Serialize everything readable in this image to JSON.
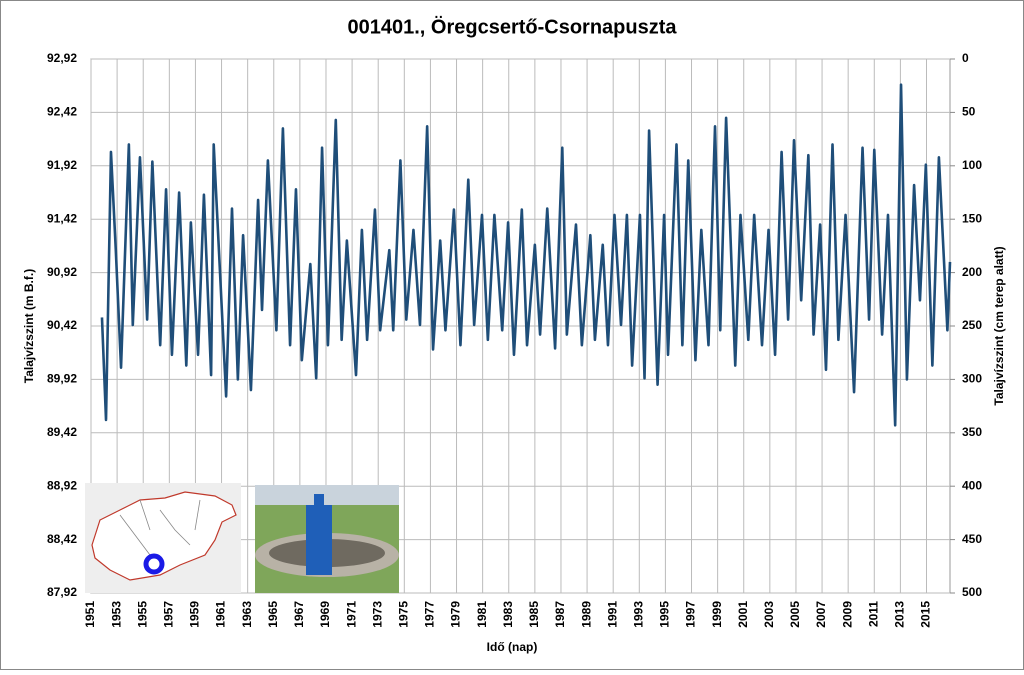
{
  "chart_data": {
    "type": "line",
    "title": "001401., Öregcsertő-Csornapuszta",
    "xlabel": "Idő (nap)",
    "ylabel": "Talajvízszint (m B.f.)",
    "y2label": "Talajvízszint (cm terep alatt)",
    "color": "#1f4e79",
    "grid": true,
    "x": [
      1951.84,
      1952.15,
      1952.53,
      1952.9,
      1953.3,
      1953.9,
      1954.2,
      1954.75,
      1955.3,
      1955.7,
      1956.3,
      1956.75,
      1957.2,
      1957.75,
      1958.3,
      1958.65,
      1959.2,
      1959.65,
      1960.2,
      1960.4,
      1961.35,
      1961.8,
      1962.25,
      1962.65,
      1963.25,
      1963.8,
      1964.1,
      1964.55,
      1965.2,
      1965.7,
      1966.25,
      1966.7,
      1967.15,
      1967.8,
      1968.25,
      1968.7,
      1969.15,
      1969.75,
      1970.2,
      1970.6,
      1971.3,
      1971.75,
      1972.15,
      1972.75,
      1973.15,
      1973.85,
      1974.15,
      1974.7,
      1975.15,
      1975.7,
      1976.2,
      1976.75,
      1977.2,
      1977.75,
      1978.15,
      1978.8,
      1979.3,
      1979.9,
      1980.35,
      1980.95,
      1981.4,
      1981.9,
      1982.5,
      1982.95,
      1983.4,
      1984.0,
      1984.4,
      1985.0,
      1985.4,
      1985.95,
      1986.55,
      1987.1,
      1987.45,
      1988.15,
      1988.6,
      1989.25,
      1989.6,
      1990.2,
      1990.6,
      1991.1,
      1991.6,
      1992.05,
      1992.45,
      1993.05,
      1993.4,
      1993.75,
      1994.4,
      1994.9,
      1995.2,
      1995.85,
      1996.3,
      1996.75,
      1997.3,
      1997.75,
      1998.3,
      1998.8,
      1999.2,
      1999.65,
      2000.35,
      2000.75,
      2001.35,
      2001.8,
      2002.4,
      2002.9,
      2003.4,
      2003.9,
      2004.4,
      2004.85,
      2005.4,
      2005.95,
      2006.35,
      2006.85,
      2007.3,
      2007.8,
      2008.25,
      2008.8,
      2009.45,
      2010.1,
      2010.6,
      2011.0,
      2011.6,
      2012.05,
      2012.6,
      2013.05,
      2013.5,
      2014.05,
      2014.5,
      2014.95,
      2015.45,
      2015.95,
      2016.6,
      2016.8
    ],
    "values": [
      90.5,
      89.54,
      92.05,
      91.13,
      90.03,
      92.12,
      90.43,
      92.0,
      90.48,
      91.96,
      90.24,
      91.7,
      90.15,
      91.67,
      90.05,
      91.39,
      90.15,
      91.65,
      89.96,
      92.12,
      89.76,
      91.52,
      89.92,
      91.27,
      89.82,
      91.6,
      90.57,
      91.97,
      90.38,
      92.27,
      90.24,
      91.7,
      90.1,
      91.0,
      89.93,
      92.09,
      90.24,
      92.35,
      90.29,
      91.22,
      89.96,
      91.32,
      90.29,
      91.51,
      90.38,
      91.13,
      90.38,
      91.97,
      90.48,
      91.32,
      90.43,
      92.29,
      90.2,
      91.22,
      90.38,
      91.51,
      90.24,
      91.79,
      90.43,
      91.46,
      90.29,
      91.46,
      90.38,
      91.39,
      90.15,
      91.51,
      90.24,
      91.18,
      90.34,
      91.52,
      90.21,
      92.09,
      90.34,
      91.37,
      90.24,
      91.27,
      90.29,
      91.18,
      90.24,
      91.46,
      90.43,
      91.46,
      90.05,
      91.46,
      89.93,
      92.25,
      89.87,
      91.46,
      90.15,
      92.12,
      90.24,
      91.97,
      90.1,
      91.32,
      90.24,
      92.29,
      90.38,
      92.37,
      90.05,
      91.46,
      90.29,
      91.46,
      90.24,
      91.32,
      90.15,
      92.05,
      90.48,
      92.16,
      90.66,
      92.02,
      90.34,
      91.37,
      90.01,
      92.12,
      90.29,
      91.46,
      89.8,
      92.09,
      90.48,
      92.07,
      90.34,
      91.46,
      89.49,
      92.68,
      89.92,
      91.74,
      90.66,
      91.93,
      90.05,
      92.0,
      90.38,
      91.02
    ],
    "xlim": [
      1951,
      2016.8
    ],
    "xticks": [
      1951,
      1953,
      1955,
      1957,
      1959,
      1961,
      1963,
      1965,
      1967,
      1969,
      1971,
      1973,
      1975,
      1977,
      1979,
      1981,
      1983,
      1985,
      1987,
      1989,
      1991,
      1993,
      1995,
      1997,
      1999,
      2001,
      2003,
      2005,
      2007,
      2009,
      2011,
      2013,
      2015
    ],
    "ylim": [
      87.92,
      92.92
    ],
    "yticks": [
      {
        "value": 87.92,
        "label": "87,92"
      },
      {
        "value": 88.42,
        "label": "88,42"
      },
      {
        "value": 88.92,
        "label": "88,92"
      },
      {
        "value": 89.42,
        "label": "89,42"
      },
      {
        "value": 89.92,
        "label": "89,92"
      },
      {
        "value": 90.42,
        "label": "90,42"
      },
      {
        "value": 90.92,
        "label": "90,92"
      },
      {
        "value": 91.42,
        "label": "91,42"
      },
      {
        "value": 91.92,
        "label": "91,92"
      },
      {
        "value": 92.42,
        "label": "92,42"
      },
      {
        "value": 92.92,
        "label": "92,92"
      }
    ],
    "y2lim": [
      500,
      0
    ],
    "y2ticks": [
      0,
      50,
      100,
      150,
      200,
      250,
      300,
      350,
      400,
      450,
      500
    ]
  }
}
